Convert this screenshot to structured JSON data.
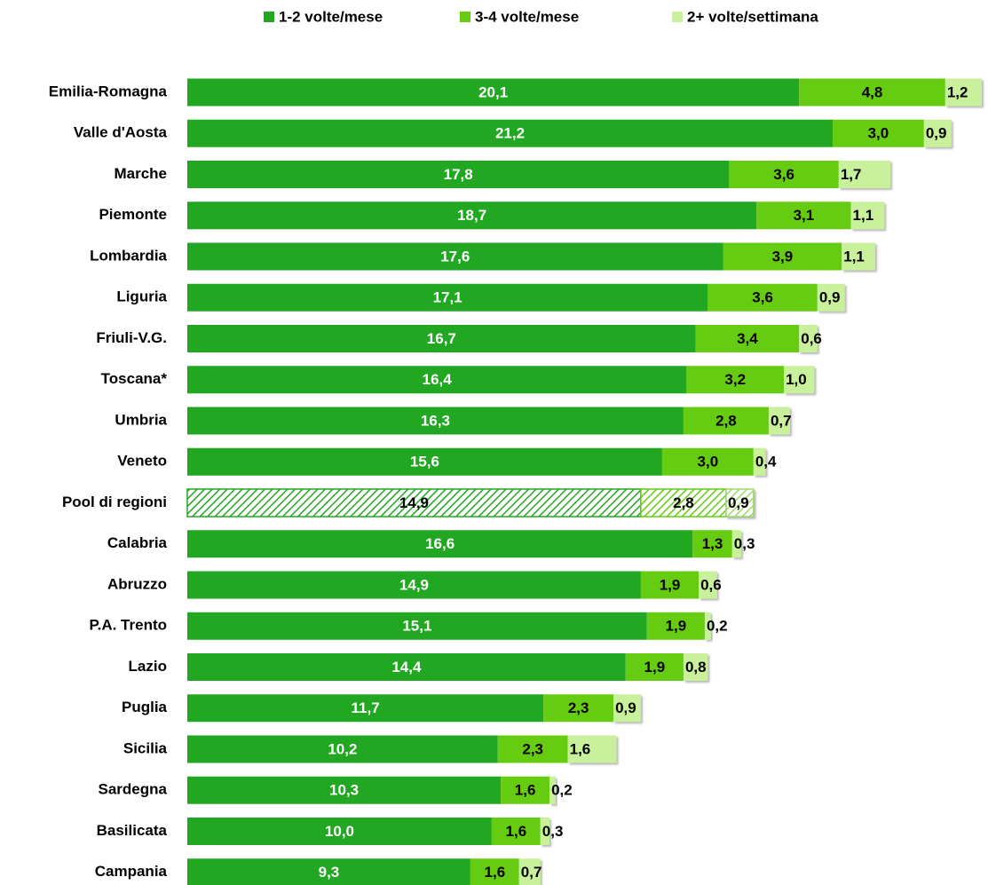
{
  "chart_data": {
    "type": "stacked-bar-horizontal",
    "hatched": "Pool di regioni",
    "categories": [
      "Emilia-Romagna",
      "Valle d'Aosta",
      "Marche",
      "Piemonte",
      "Lombardia",
      "Liguria",
      "Friuli-V.G.",
      "Toscana*",
      "Umbria",
      "Veneto",
      "Pool di regioni",
      "Calabria",
      "Abruzzo",
      "P.A. Trento",
      "Lazio",
      "Puglia",
      "Sicilia",
      "Sardegna",
      "Basilicata",
      "Campania"
    ],
    "series": [
      {
        "name": "1-2 volte/mese",
        "color": "#22a722",
        "values": [
          20.1,
          21.2,
          17.8,
          18.7,
          17.6,
          17.1,
          16.7,
          16.4,
          16.3,
          15.6,
          14.9,
          16.6,
          14.9,
          15.1,
          14.4,
          11.7,
          10.2,
          10.3,
          10.0,
          9.3
        ],
        "value_labels": [
          "20,1",
          "21,2",
          "17,8",
          "18,7",
          "17,6",
          "17,1",
          "16,7",
          "16,4",
          "16,3",
          "15,6",
          "14,9",
          "16,6",
          "14,9",
          "15,1",
          "14,4",
          "11,7",
          "10,2",
          "10,3",
          "10,0",
          "9,3"
        ]
      },
      {
        "name": "3-4 volte/mese",
        "color": "#66cc11",
        "values": [
          4.8,
          3.0,
          3.6,
          3.1,
          3.9,
          3.6,
          3.4,
          3.2,
          2.8,
          3.0,
          2.8,
          1.3,
          1.9,
          1.9,
          1.9,
          2.3,
          2.3,
          1.6,
          1.6,
          1.6
        ],
        "value_labels": [
          "4,8",
          "3,0",
          "3,6",
          "3,1",
          "3,9",
          "3,6",
          "3,4",
          "3,2",
          "2,8",
          "3,0",
          "2,8",
          "1,3",
          "1,9",
          "1,9",
          "1,9",
          "2,3",
          "2,3",
          "1,6",
          "1,6",
          "1,6"
        ]
      },
      {
        "name": "2+ volte/settimana",
        "color": "#c9f09a",
        "values": [
          1.2,
          0.9,
          1.7,
          1.1,
          1.1,
          0.9,
          0.6,
          1.0,
          0.7,
          0.4,
          0.9,
          0.3,
          0.6,
          0.2,
          0.8,
          0.9,
          1.6,
          0.2,
          0.3,
          0.7
        ],
        "value_labels": [
          "1,2",
          "0,9",
          "1,7",
          "1,1",
          "1,1",
          "0,9",
          "0,6",
          "1,0",
          "0,7",
          "0,4",
          "0,9",
          "0,3",
          "0,6",
          "0,2",
          "0,8",
          "0,9",
          "1,6",
          "0,2",
          "0,3",
          "0,7"
        ]
      }
    ]
  }
}
